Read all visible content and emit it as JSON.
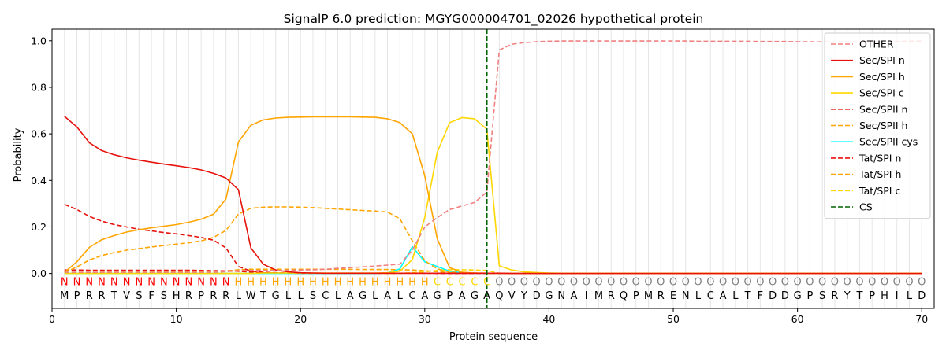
{
  "chart_data": {
    "type": "line",
    "title": "SignalP 6.0 prediction: MGYG000004701_02026 hypothetical protein",
    "xlabel": "Protein sequence",
    "ylabel": "Probability",
    "xlim": [
      0,
      71
    ],
    "ylim": [
      -0.15,
      1.05
    ],
    "xticks": [
      0,
      10,
      20,
      30,
      40,
      50,
      60,
      70
    ],
    "yticks": [
      0.0,
      0.2,
      0.4,
      0.6,
      0.8,
      1.0
    ],
    "ytick_labels": [
      "0.0",
      "0.2",
      "0.4",
      "0.6",
      "0.8",
      "1.0"
    ],
    "legend_position": "top-right",
    "grid": "vertical lines at each residue",
    "cleavage_site": {
      "name": "CS",
      "x": 35,
      "color": "#006400"
    },
    "sequence": [
      "M",
      "P",
      "R",
      "R",
      "T",
      "V",
      "S",
      "F",
      "S",
      "H",
      "R",
      "P",
      "R",
      "R",
      "L",
      "W",
      "T",
      "G",
      "L",
      "L",
      "S",
      "C",
      "L",
      "A",
      "G",
      "L",
      "A",
      "L",
      "C",
      "A",
      "G",
      "P",
      "A",
      "G",
      "A",
      "Q",
      "V",
      "Y",
      "D",
      "G",
      "N",
      "A",
      "I",
      "M",
      "R",
      "Q",
      "P",
      "M",
      "R",
      "E",
      "N",
      "L",
      "C",
      "A",
      "L",
      "T",
      "F",
      "D",
      "D",
      "G",
      "P",
      "S",
      "R",
      "Y",
      "T",
      "P",
      "H",
      "I",
      "L",
      "D"
    ],
    "annotation": [
      "N",
      "N",
      "N",
      "N",
      "N",
      "N",
      "N",
      "N",
      "N",
      "N",
      "N",
      "N",
      "N",
      "N",
      "H",
      "H",
      "H",
      "H",
      "H",
      "H",
      "H",
      "H",
      "H",
      "H",
      "H",
      "H",
      "H",
      "H",
      "H",
      "H",
      "C",
      "C",
      "C",
      "C",
      "C",
      "O",
      "O",
      "O",
      "O",
      "O",
      "O",
      "O",
      "O",
      "O",
      "O",
      "O",
      "O",
      "O",
      "O",
      "O",
      "O",
      "O",
      "O",
      "O",
      "O",
      "O",
      "O",
      "O",
      "O",
      "O",
      "O",
      "O",
      "O",
      "O",
      "O",
      "O",
      "O",
      "O",
      "O",
      "O"
    ],
    "annotation_colors": {
      "N": "#ff0000",
      "H": "#ffa500",
      "C": "#ffd700",
      "O": "#808080"
    },
    "series": [
      {
        "name": "OTHER",
        "color": "#f08080",
        "dash": true,
        "values": [
          0.005,
          0.005,
          0.005,
          0.005,
          0.005,
          0.005,
          0.005,
          0.005,
          0.005,
          0.005,
          0.005,
          0.005,
          0.005,
          0.008,
          0.012,
          0.013,
          0.013,
          0.013,
          0.014,
          0.015,
          0.016,
          0.018,
          0.022,
          0.025,
          0.028,
          0.032,
          0.036,
          0.04,
          0.1,
          0.2,
          0.24,
          0.275,
          0.29,
          0.305,
          0.35,
          0.96,
          0.985,
          0.992,
          0.996,
          0.998,
          0.999,
          0.999,
          0.999,
          0.999,
          0.999,
          0.999,
          0.999,
          0.999,
          0.999,
          0.999,
          0.999,
          0.998,
          0.998,
          0.998,
          0.998,
          0.998,
          0.997,
          0.997,
          0.997,
          0.996,
          0.996,
          0.995,
          0.995,
          0.995,
          0.995,
          0.995,
          0.996,
          0.997,
          0.998,
          0.999
        ]
      },
      {
        "name": "Sec/SPI n",
        "color": "#e8120c",
        "dash": false,
        "values": [
          0.675,
          0.63,
          0.562,
          0.528,
          0.51,
          0.497,
          0.487,
          0.478,
          0.47,
          0.463,
          0.455,
          0.445,
          0.43,
          0.41,
          0.36,
          0.11,
          0.04,
          0.015,
          0.007,
          0.003,
          0.002,
          0.001,
          0.001,
          0.001,
          0.001,
          0.001,
          0.001,
          0.001,
          0.001,
          0.001,
          0.001,
          0.001,
          0.001,
          0.001,
          0.001,
          0.001,
          0,
          0,
          0,
          0,
          0,
          0,
          0,
          0,
          0,
          0,
          0,
          0,
          0,
          0,
          0,
          0,
          0,
          0,
          0,
          0,
          0,
          0,
          0,
          0,
          0,
          0,
          0,
          0,
          0,
          0,
          0,
          0,
          0,
          0
        ]
      },
      {
        "name": "Sec/SPI h",
        "color": "#ffa500",
        "dash": false,
        "values": [
          0.005,
          0.05,
          0.112,
          0.145,
          0.163,
          0.178,
          0.188,
          0.196,
          0.203,
          0.21,
          0.22,
          0.233,
          0.255,
          0.32,
          0.565,
          0.637,
          0.66,
          0.668,
          0.671,
          0.672,
          0.673,
          0.673,
          0.673,
          0.673,
          0.672,
          0.671,
          0.665,
          0.648,
          0.6,
          0.42,
          0.15,
          0.025,
          0.005,
          0.002,
          0.001,
          0.001,
          0,
          0,
          0,
          0,
          0,
          0,
          0,
          0,
          0,
          0,
          0,
          0,
          0,
          0,
          0,
          0,
          0,
          0,
          0,
          0,
          0,
          0,
          0,
          0,
          0,
          0,
          0,
          0,
          0,
          0,
          0,
          0,
          0,
          0
        ]
      },
      {
        "name": "Sec/SPI c",
        "color": "#ffd700",
        "dash": false,
        "values": [
          0,
          0,
          0,
          0,
          0,
          0,
          0,
          0,
          0,
          0,
          0,
          0,
          0,
          0,
          0,
          0,
          0.002,
          0.002,
          0.002,
          0.002,
          0.002,
          0.002,
          0.002,
          0.002,
          0.002,
          0.002,
          0.003,
          0.01,
          0.06,
          0.24,
          0.52,
          0.648,
          0.67,
          0.665,
          0.62,
          0.033,
          0.015,
          0.007,
          0.004,
          0.002,
          0.001,
          0.001,
          0.001,
          0.001,
          0.001,
          0.001,
          0.001,
          0.001,
          0.001,
          0.001,
          0.001,
          0.001,
          0.001,
          0.001,
          0.001,
          0.001,
          0.001,
          0.001,
          0.001,
          0.001,
          0.001,
          0.001,
          0.001,
          0.001,
          0.001,
          0.001,
          0.001,
          0.001,
          0.001,
          0.001
        ]
      },
      {
        "name": "Sec/SPII n",
        "color": "#e8120c",
        "dash": true,
        "values": [
          0.297,
          0.275,
          0.245,
          0.225,
          0.21,
          0.2,
          0.19,
          0.183,
          0.176,
          0.17,
          0.163,
          0.155,
          0.143,
          0.11,
          0.03,
          0.01,
          0.005,
          0.003,
          0.002,
          0.001,
          0.001,
          0.001,
          0.001,
          0.001,
          0.001,
          0.001,
          0.001,
          0.001,
          0.001,
          0.001,
          0.001,
          0.001,
          0.001,
          0.001,
          0.001,
          0.001,
          0,
          0,
          0,
          0,
          0,
          0,
          0,
          0,
          0,
          0,
          0,
          0,
          0,
          0,
          0,
          0,
          0,
          0,
          0,
          0,
          0,
          0,
          0,
          0,
          0,
          0,
          0,
          0,
          0,
          0,
          0,
          0,
          0,
          0
        ]
      },
      {
        "name": "Sec/SPII h",
        "color": "#ffa500",
        "dash": true,
        "values": [
          0.004,
          0.028,
          0.058,
          0.077,
          0.09,
          0.1,
          0.107,
          0.114,
          0.12,
          0.126,
          0.132,
          0.14,
          0.155,
          0.185,
          0.255,
          0.28,
          0.285,
          0.286,
          0.286,
          0.285,
          0.283,
          0.28,
          0.277,
          0.274,
          0.271,
          0.268,
          0.264,
          0.235,
          0.14,
          0.055,
          0.02,
          0.006,
          0.003,
          0.002,
          0.001,
          0.001,
          0,
          0,
          0,
          0,
          0,
          0,
          0,
          0,
          0,
          0,
          0,
          0,
          0,
          0,
          0,
          0,
          0,
          0,
          0,
          0,
          0,
          0,
          0,
          0,
          0,
          0,
          0,
          0,
          0,
          0,
          0,
          0,
          0,
          0
        ]
      },
      {
        "name": "Sec/SPII cys",
        "color": "#00ffff",
        "dash": false,
        "values": [
          0,
          0,
          0,
          0,
          0,
          0,
          0,
          0,
          0,
          0,
          0,
          0,
          0,
          0,
          0,
          0,
          0,
          0,
          0,
          0,
          0,
          0,
          0,
          0,
          0,
          0,
          0.002,
          0.02,
          0.115,
          0.05,
          0.03,
          0.01,
          0.003,
          0.001,
          0.001,
          0.001,
          0,
          0,
          0,
          0,
          0,
          0,
          0,
          0,
          0,
          0,
          0,
          0,
          0,
          0,
          0,
          0,
          0,
          0,
          0,
          0,
          0,
          0,
          0,
          0,
          0,
          0,
          0,
          0,
          0,
          0,
          0,
          0,
          0,
          0
        ]
      },
      {
        "name": "Tat/SPI n",
        "color": "#e8120c",
        "dash": true,
        "values": [
          0.015,
          0.015,
          0.014,
          0.014,
          0.014,
          0.014,
          0.014,
          0.014,
          0.014,
          0.014,
          0.014,
          0.013,
          0.012,
          0.011,
          0.01,
          0.006,
          0.003,
          0.002,
          0.001,
          0.001,
          0.001,
          0.001,
          0.001,
          0.001,
          0.001,
          0.001,
          0.001,
          0.001,
          0.001,
          0.001,
          0,
          0,
          0,
          0,
          0,
          0,
          0,
          0,
          0,
          0,
          0,
          0,
          0,
          0,
          0,
          0,
          0,
          0,
          0,
          0,
          0,
          0,
          0,
          0,
          0,
          0,
          0,
          0,
          0,
          0,
          0,
          0,
          0,
          0,
          0,
          0,
          0,
          0,
          0,
          0
        ]
      },
      {
        "name": "Tat/SPI h",
        "color": "#ffa500",
        "dash": true,
        "values": [
          0.001,
          0.003,
          0.004,
          0.005,
          0.005,
          0.006,
          0.006,
          0.006,
          0.006,
          0.007,
          0.007,
          0.007,
          0.008,
          0.01,
          0.016,
          0.018,
          0.018,
          0.018,
          0.018,
          0.018,
          0.018,
          0.018,
          0.018,
          0.018,
          0.017,
          0.017,
          0.017,
          0.016,
          0.015,
          0.012,
          0.008,
          0.004,
          0.002,
          0.001,
          0.001,
          0,
          0,
          0,
          0,
          0,
          0,
          0,
          0,
          0,
          0,
          0,
          0,
          0,
          0,
          0,
          0,
          0,
          0,
          0,
          0,
          0,
          0,
          0,
          0,
          0,
          0,
          0,
          0,
          0,
          0,
          0,
          0,
          0,
          0,
          0
        ]
      },
      {
        "name": "Tat/SPI c",
        "color": "#ffd700",
        "dash": true,
        "values": [
          0,
          0,
          0,
          0,
          0,
          0,
          0,
          0,
          0,
          0,
          0,
          0,
          0,
          0,
          0,
          0,
          0,
          0,
          0,
          0,
          0,
          0,
          0,
          0,
          0,
          0,
          0,
          0.001,
          0.003,
          0.008,
          0.013,
          0.016,
          0.016,
          0.015,
          0.013,
          0.001,
          0,
          0,
          0,
          0,
          0,
          0,
          0,
          0,
          0,
          0,
          0,
          0,
          0,
          0,
          0,
          0,
          0,
          0,
          0,
          0,
          0,
          0,
          0,
          0,
          0,
          0,
          0,
          0,
          0,
          0,
          0,
          0,
          0,
          0
        ]
      }
    ]
  }
}
